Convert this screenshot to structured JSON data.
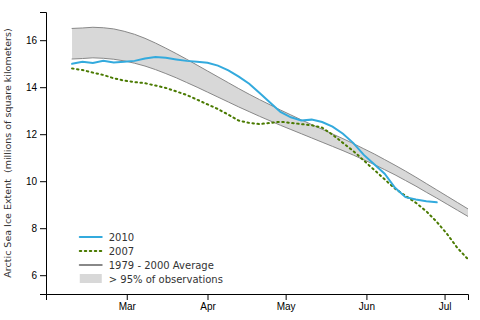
{
  "chart_data": {
    "type": "line",
    "ylabel": "Arctic Sea Ice Extent  (millions of square kilometers)",
    "xlim": [
      -10,
      152
    ],
    "ylim": [
      5.2,
      17.2
    ],
    "yticks": [
      6,
      8,
      10,
      12,
      14,
      16
    ],
    "xticks": [
      {
        "value": 21,
        "label": "Mar"
      },
      {
        "value": 52,
        "label": "Apr"
      },
      {
        "value": 82,
        "label": "May"
      },
      {
        "value": 113,
        "label": "Jun"
      },
      {
        "value": 143,
        "label": "Jul"
      }
    ],
    "grid": false,
    "legend": "lower left",
    "series": [
      {
        "name": "2010",
        "type": "line",
        "color": "#33aadd",
        "line_style": "solid",
        "x": [
          0,
          4,
          8,
          12,
          16,
          20,
          24,
          28,
          32,
          36,
          40,
          44,
          48,
          52,
          56,
          60,
          64,
          68,
          72,
          76,
          80,
          84,
          88,
          92,
          96,
          100,
          104,
          108,
          112,
          116,
          120,
          124,
          128,
          132,
          136,
          140
        ],
        "values": [
          15.0,
          15.08,
          15.03,
          15.12,
          15.05,
          15.08,
          15.12,
          15.22,
          15.28,
          15.25,
          15.18,
          15.12,
          15.08,
          15.04,
          14.92,
          14.72,
          14.45,
          14.15,
          13.75,
          13.35,
          12.95,
          12.72,
          12.58,
          12.62,
          12.52,
          12.32,
          12.02,
          11.62,
          11.12,
          10.72,
          10.32,
          9.72,
          9.32,
          9.22,
          9.15,
          9.1
        ]
      },
      {
        "name": "2007",
        "type": "line",
        "color": "#4a7a00",
        "line_style": "dotted",
        "x": [
          0,
          4,
          8,
          12,
          16,
          20,
          24,
          28,
          32,
          36,
          40,
          44,
          48,
          52,
          56,
          60,
          64,
          68,
          72,
          76,
          80,
          84,
          88,
          92,
          96,
          100,
          104,
          108,
          112,
          116,
          120,
          124,
          128,
          132,
          136,
          140,
          144,
          148,
          152
        ],
        "values": [
          14.8,
          14.73,
          14.62,
          14.52,
          14.38,
          14.28,
          14.22,
          14.17,
          14.07,
          13.97,
          13.82,
          13.67,
          13.47,
          13.27,
          13.07,
          12.83,
          12.58,
          12.48,
          12.43,
          12.48,
          12.53,
          12.48,
          12.43,
          12.38,
          12.28,
          11.98,
          11.63,
          11.28,
          10.88,
          10.48,
          10.08,
          9.68,
          9.38,
          9.08,
          8.72,
          8.27,
          7.75,
          7.15,
          6.68
        ]
      },
      {
        "name": "1979 - 2000 Average",
        "type": "line",
        "color": "#888888",
        "line_style": "solid",
        "x": [
          0,
          4,
          8,
          12,
          16,
          20,
          24,
          28,
          32,
          36,
          40,
          44,
          48,
          52,
          56,
          60,
          64,
          68,
          72,
          76,
          80,
          84,
          88,
          92,
          96,
          100,
          104,
          108,
          112,
          116,
          120,
          124,
          128,
          132,
          136,
          140,
          144,
          148,
          152
        ],
        "upper": [
          16.5,
          16.52,
          16.55,
          16.53,
          16.48,
          16.38,
          16.25,
          16.08,
          15.88,
          15.66,
          15.43,
          15.19,
          14.94,
          14.69,
          14.44,
          14.19,
          13.94,
          13.7,
          13.47,
          13.25,
          13.03,
          12.82,
          12.61,
          12.41,
          12.21,
          12.01,
          11.81,
          11.6,
          11.38,
          11.16,
          10.92,
          10.68,
          10.43,
          10.17,
          9.9,
          9.63,
          9.36,
          9.09,
          8.82
        ],
        "lower": [
          15.2,
          15.22,
          15.25,
          15.23,
          15.19,
          15.12,
          15.02,
          14.9,
          14.75,
          14.58,
          14.4,
          14.2,
          14.0,
          13.79,
          13.58,
          13.37,
          13.16,
          12.96,
          12.76,
          12.57,
          12.38,
          12.2,
          12.02,
          11.84,
          11.66,
          11.48,
          11.3,
          11.11,
          10.91,
          10.71,
          10.49,
          10.27,
          10.03,
          9.79,
          9.53,
          9.28,
          9.02,
          8.76,
          8.5
        ]
      },
      {
        "name": "> 95% of observations",
        "type": "area",
        "color": "#d8d8d8",
        "x": [
          0,
          4,
          8,
          12,
          16,
          20,
          24,
          28,
          32,
          36,
          40,
          44,
          48,
          52,
          56,
          60,
          64,
          68,
          72,
          76,
          80,
          84,
          88,
          92,
          96,
          100,
          104,
          108,
          112,
          116,
          120,
          124,
          128,
          132,
          136,
          140,
          144,
          148,
          152
        ],
        "upper": [
          16.5,
          16.52,
          16.55,
          16.53,
          16.48,
          16.38,
          16.25,
          16.08,
          15.88,
          15.66,
          15.43,
          15.19,
          14.94,
          14.69,
          14.44,
          14.19,
          13.94,
          13.7,
          13.47,
          13.25,
          13.03,
          12.82,
          12.61,
          12.41,
          12.21,
          12.01,
          11.81,
          11.6,
          11.38,
          11.16,
          10.92,
          10.68,
          10.43,
          10.17,
          9.9,
          9.63,
          9.36,
          9.09,
          8.82
        ],
        "lower": [
          15.2,
          15.22,
          15.25,
          15.23,
          15.19,
          15.12,
          15.02,
          14.9,
          14.75,
          14.58,
          14.4,
          14.2,
          14.0,
          13.79,
          13.58,
          13.37,
          13.16,
          12.96,
          12.76,
          12.57,
          12.38,
          12.2,
          12.02,
          11.84,
          11.66,
          11.48,
          11.3,
          11.11,
          10.91,
          10.71,
          10.49,
          10.27,
          10.03,
          9.79,
          9.53,
          9.28,
          9.02,
          8.76,
          8.5
        ]
      }
    ]
  }
}
